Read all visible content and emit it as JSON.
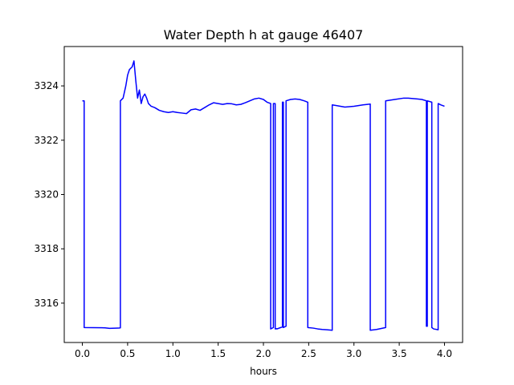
{
  "chart_data": {
    "type": "line",
    "title": "Water Depth h at gauge 46407",
    "xlabel": "hours",
    "ylabel": "",
    "xlim": [
      -0.2,
      4.2
    ],
    "ylim": [
      3314.55,
      3325.45
    ],
    "xticks": [
      0.0,
      0.5,
      1.0,
      1.5,
      2.0,
      2.5,
      3.0,
      3.5,
      4.0
    ],
    "xtick_labels": [
      "0.0",
      "0.5",
      "1.0",
      "1.5",
      "2.0",
      "2.5",
      "3.0",
      "3.5",
      "4.0"
    ],
    "yticks": [
      3316,
      3318,
      3320,
      3322,
      3324
    ],
    "ytick_labels": [
      "3316",
      "3318",
      "3320",
      "3322",
      "3324"
    ],
    "grid": false,
    "series": [
      {
        "color": "#0000ff",
        "x": [
          0.0,
          0.02,
          0.02,
          0.25,
          0.3,
          0.4,
          0.42,
          0.42,
          0.45,
          0.48,
          0.5,
          0.52,
          0.55,
          0.57,
          0.59,
          0.61,
          0.63,
          0.65,
          0.67,
          0.69,
          0.71,
          0.73,
          0.76,
          0.8,
          0.85,
          0.9,
          0.95,
          1.0,
          1.05,
          1.1,
          1.15,
          1.2,
          1.25,
          1.3,
          1.35,
          1.4,
          1.45,
          1.5,
          1.55,
          1.6,
          1.65,
          1.7,
          1.75,
          1.8,
          1.85,
          1.9,
          1.95,
          2.0,
          2.04,
          2.08,
          2.08,
          2.11,
          2.11,
          2.13,
          2.13,
          2.15,
          2.15,
          2.19,
          2.21,
          2.21,
          2.22,
          2.22,
          2.25,
          2.25,
          2.3,
          2.35,
          2.4,
          2.45,
          2.49,
          2.49,
          2.55,
          2.6,
          2.65,
          2.7,
          2.76,
          2.76,
          2.8,
          2.85,
          2.9,
          3.0,
          3.1,
          3.18,
          3.18,
          3.25,
          3.35,
          3.35,
          3.45,
          3.55,
          3.6,
          3.7,
          3.75,
          3.8,
          3.8,
          3.81,
          3.81,
          3.86,
          3.86,
          3.88,
          3.93,
          3.93,
          3.96,
          4.0
        ],
        "y": [
          3323.45,
          3323.45,
          3315.1,
          3315.09,
          3315.07,
          3315.08,
          3315.09,
          3323.45,
          3323.55,
          3324.0,
          3324.4,
          3324.6,
          3324.7,
          3324.92,
          3324.2,
          3323.55,
          3323.85,
          3323.35,
          3323.6,
          3323.7,
          3323.55,
          3323.35,
          3323.25,
          3323.2,
          3323.1,
          3323.05,
          3323.02,
          3323.05,
          3323.02,
          3323.0,
          3322.98,
          3323.12,
          3323.15,
          3323.1,
          3323.2,
          3323.3,
          3323.38,
          3323.35,
          3323.32,
          3323.35,
          3323.34,
          3323.3,
          3323.32,
          3323.38,
          3323.45,
          3323.52,
          3323.55,
          3323.5,
          3323.4,
          3323.35,
          3315.05,
          3315.1,
          3323.35,
          3323.35,
          3315.05,
          3315.06,
          3315.05,
          3315.1,
          3315.12,
          3323.4,
          3323.4,
          3315.1,
          3315.15,
          3323.45,
          3323.5,
          3323.52,
          3323.5,
          3323.45,
          3323.4,
          3315.1,
          3315.08,
          3315.05,
          3315.03,
          3315.02,
          3315.0,
          3323.3,
          3323.28,
          3323.25,
          3323.22,
          3323.25,
          3323.3,
          3323.33,
          3315.0,
          3315.03,
          3315.1,
          3323.45,
          3323.5,
          3323.55,
          3323.55,
          3323.52,
          3323.5,
          3323.45,
          3315.15,
          3315.15,
          3323.45,
          3323.4,
          3315.1,
          3315.05,
          3315.02,
          3323.35,
          3323.3,
          3323.25
        ]
      }
    ]
  }
}
